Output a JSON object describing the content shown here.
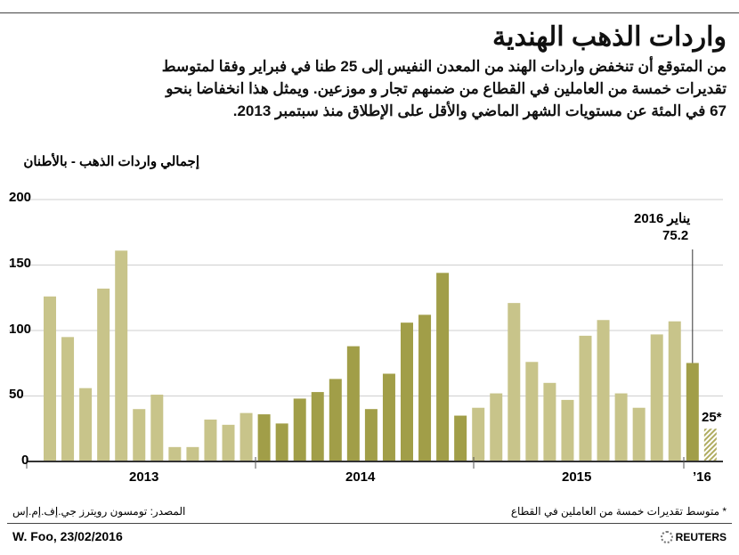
{
  "title": "واردات الذهب الهندية",
  "subtitle": "من المتوقع أن تنخفض واردات الهند من المعدن النفيس إلى 25 طنا في فبراير وفقا لمتوسط تقديرات خمسة من العاملين في القطاع من ضمنهم تجار و موزعين. ويمثل هذا انخفاضا بنحو 67 في المئة عن مستويات الشهر الماضي والأقل على الإطلاق منذ سبتمبر 2013.",
  "footnote": "* متوسط تقديرات خمسة من العاملين في القطاع",
  "source": "المصدر: تومسون رويترز جي.إف.إم.إس",
  "credit": "W. Foo, 23/02/2016",
  "brand": "REUTERS",
  "chart_data": {
    "type": "bar",
    "ylabel": "إجمالي واردات الذهب - بالأطنان",
    "ylim": [
      0,
      200
    ],
    "yticks": [
      "0",
      "50",
      "100",
      "150",
      "200"
    ],
    "grid": true,
    "year_labels": [
      "2013",
      "2014",
      "2015",
      "’16"
    ],
    "colors": {
      "light": "#c8c48a",
      "dark": "#a19e48",
      "estimate": "#c8c48a"
    },
    "series": [
      {
        "year": "2013",
        "style": "light",
        "values": [
          126,
          95,
          56,
          132,
          161,
          40,
          51,
          11,
          11,
          32,
          28,
          37
        ]
      },
      {
        "year": "2014",
        "style": "dark",
        "values": [
          36,
          29,
          48,
          53,
          63,
          88,
          40,
          67,
          106,
          112,
          144,
          35
        ]
      },
      {
        "year": "2015",
        "style": "light",
        "values": [
          41,
          52,
          121,
          76,
          60,
          47,
          96,
          108,
          52,
          41,
          97,
          107
        ]
      },
      {
        "year": "2016",
        "style": "dark",
        "values": [
          75.2
        ]
      },
      {
        "year": "2016",
        "style": "hatched",
        "values": [
          25
        ]
      }
    ],
    "annotations": {
      "jan_label": "يناير 2016",
      "jan_value": "75.2",
      "feb_value": "25*"
    }
  }
}
